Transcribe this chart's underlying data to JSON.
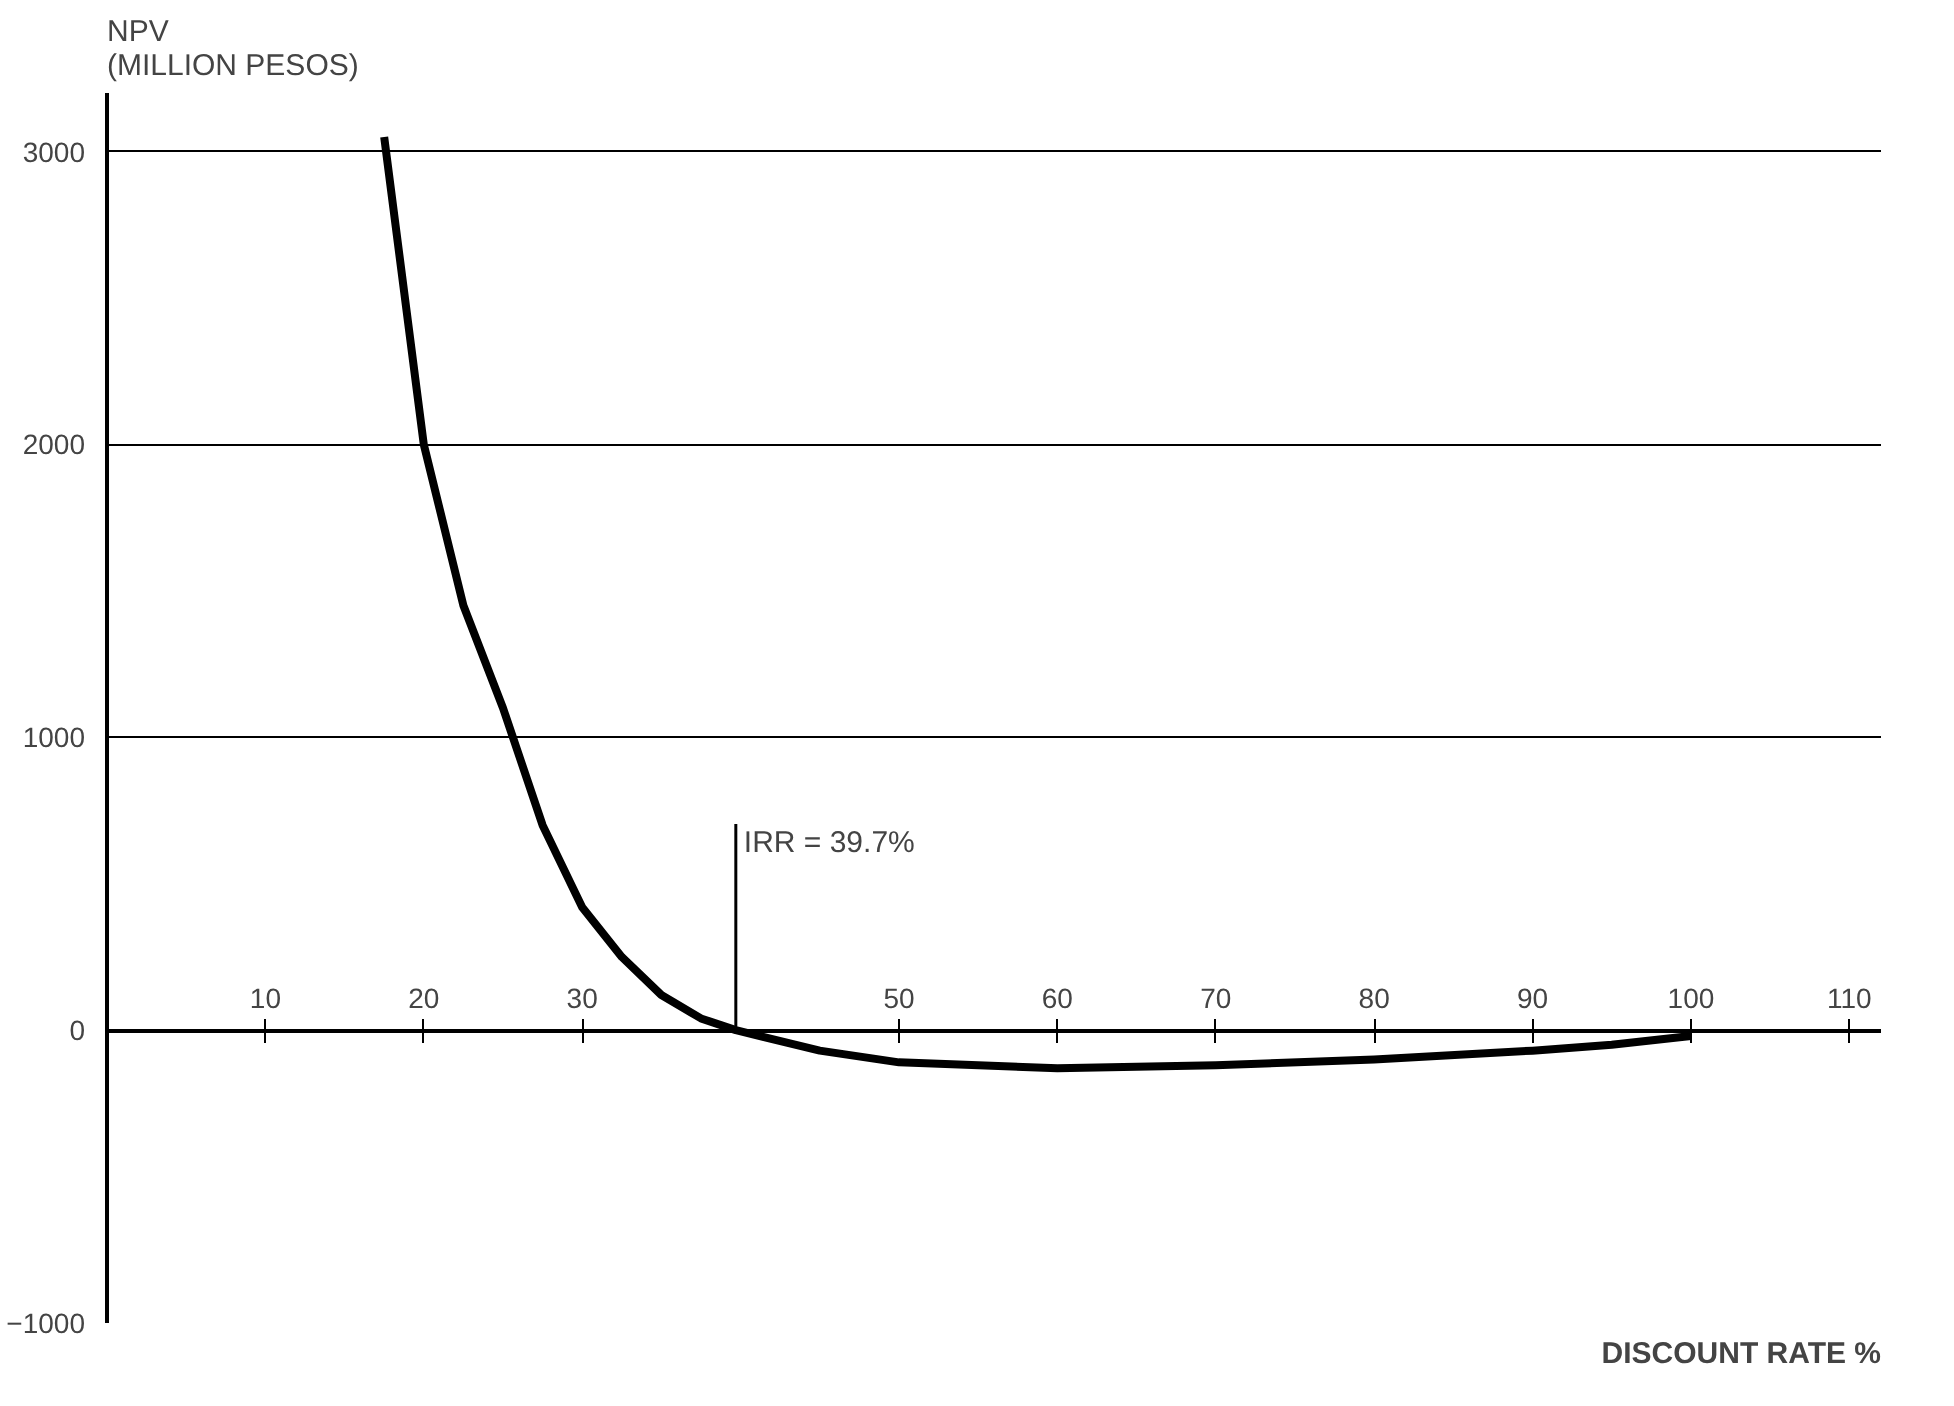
{
  "chart_data": {
    "type": "line",
    "ylabel": "NPV\n(MILLION PESOS)",
    "xlabel": "DISCOUNT RATE %",
    "x": [
      17.5,
      20,
      22.5,
      25,
      27.5,
      30,
      32.5,
      35,
      37.5,
      39.7,
      45,
      50,
      60,
      70,
      80,
      90,
      95,
      100
    ],
    "series": [
      {
        "color": "#000000",
        "values": [
          3050,
          2000,
          1450,
          1100,
          700,
          420,
          250,
          120,
          40,
          0,
          -70,
          -110,
          -130,
          -120,
          -100,
          -70,
          -50,
          -20
        ]
      }
    ],
    "ref_lines": [
      {
        "axis": "x",
        "value": 39.7,
        "label": "IRR = 39.7%"
      }
    ],
    "xlim": [
      0,
      112
    ],
    "xticks": [
      10,
      20,
      30,
      50,
      60,
      70,
      80,
      90,
      100,
      110
    ],
    "ylim": [
      -1000,
      3200
    ],
    "yticks": [
      -1000,
      0,
      1000,
      2000,
      3000
    ],
    "grid": "y",
    "marker": "none",
    "line_style": "solid"
  }
}
